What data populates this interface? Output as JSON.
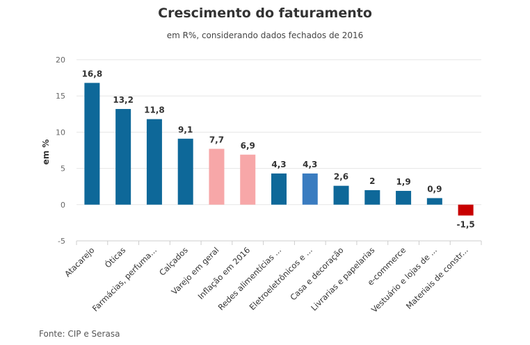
{
  "chart_data": {
    "type": "bar",
    "title": "Crescimento do faturamento",
    "subtitle": "em R%, considerando dados fechados de 2016",
    "ylabel": "em %",
    "xlabel": "",
    "ylim": [
      -5,
      20
    ],
    "yticks": [
      -5,
      0,
      5,
      10,
      15,
      20
    ],
    "grid": true,
    "categories": [
      "Atacarejo",
      "Óticas",
      "Farmácias, perfuma...",
      "Calçados",
      "Varejo em geral",
      "Inflação em 2016",
      "Redes alimentícias ...",
      "Eletroeletrônicos e ...",
      "Casa e decoração",
      "Livrarias e papelarias",
      "e-commerce",
      "Vestuário e lojas de ...",
      "Materiais de constr..."
    ],
    "values": [
      16.8,
      13.2,
      11.8,
      9.1,
      7.7,
      6.9,
      4.3,
      4.3,
      2.6,
      2,
      1.9,
      0.9,
      -1.5
    ],
    "value_labels": [
      "16,8",
      "13,2",
      "11,8",
      "9,1",
      "7,7",
      "6,9",
      "4,3",
      "4,3",
      "2,6",
      "2",
      "1,9",
      "0,9",
      "-1,5"
    ],
    "colors": [
      "#0e6899",
      "#0e6899",
      "#0e6899",
      "#0e6899",
      "#f7a7a8",
      "#f7a7a8",
      "#0e6899",
      "#3a7cc0",
      "#0e6899",
      "#0e6899",
      "#0e6899",
      "#0e6899",
      "#c80000"
    ]
  },
  "source": "Fonte: CIP e Serasa"
}
